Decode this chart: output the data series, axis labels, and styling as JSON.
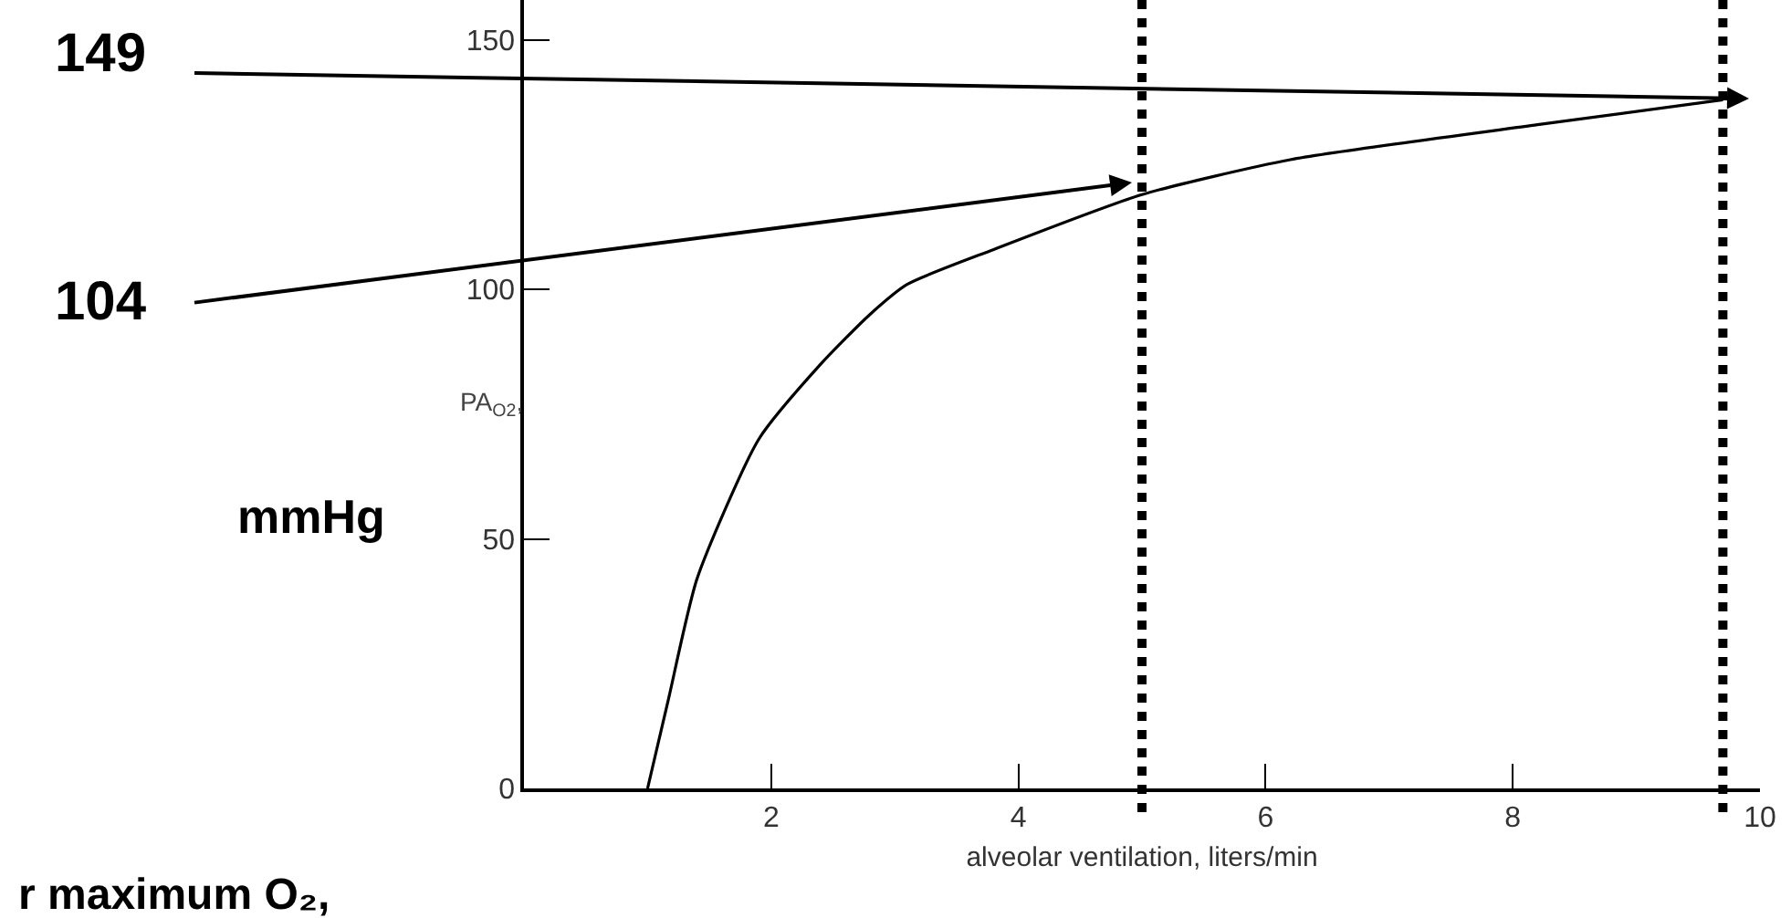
{
  "chart_data": {
    "type": "line",
    "xlabel": "alveolar ventilation, liters/min",
    "ylabel": "PA$_{O2}$,",
    "x": [
      1,
      1.17,
      1.4,
      1.9,
      2.4,
      2.8,
      3.1,
      3.8,
      5,
      6.2,
      8.2,
      9.7
    ],
    "series": [
      {
        "color": "#000000",
        "values": [
          0,
          18,
          42,
          70,
          85,
          95,
          101,
          108,
          119,
          126,
          133,
          138
        ]
      }
    ],
    "xlim": [
      0,
      10
    ],
    "ylim": [
      0,
      158
    ],
    "xticks": [
      2,
      4,
      6,
      8,
      10
    ],
    "yticks": [
      0,
      50,
      100,
      150
    ],
    "marker": "none",
    "line_style": "solid",
    "ref_lines": [
      {
        "axis": "x",
        "value": 5,
        "color": "#000000",
        "line_style": "dotted"
      },
      {
        "axis": "x",
        "value": 9.7,
        "color": "#000000",
        "line_style": "dotted"
      }
    ],
    "annotations": [
      "149",
      "104",
      "mmHg",
      "r maximum O₂,"
    ]
  }
}
